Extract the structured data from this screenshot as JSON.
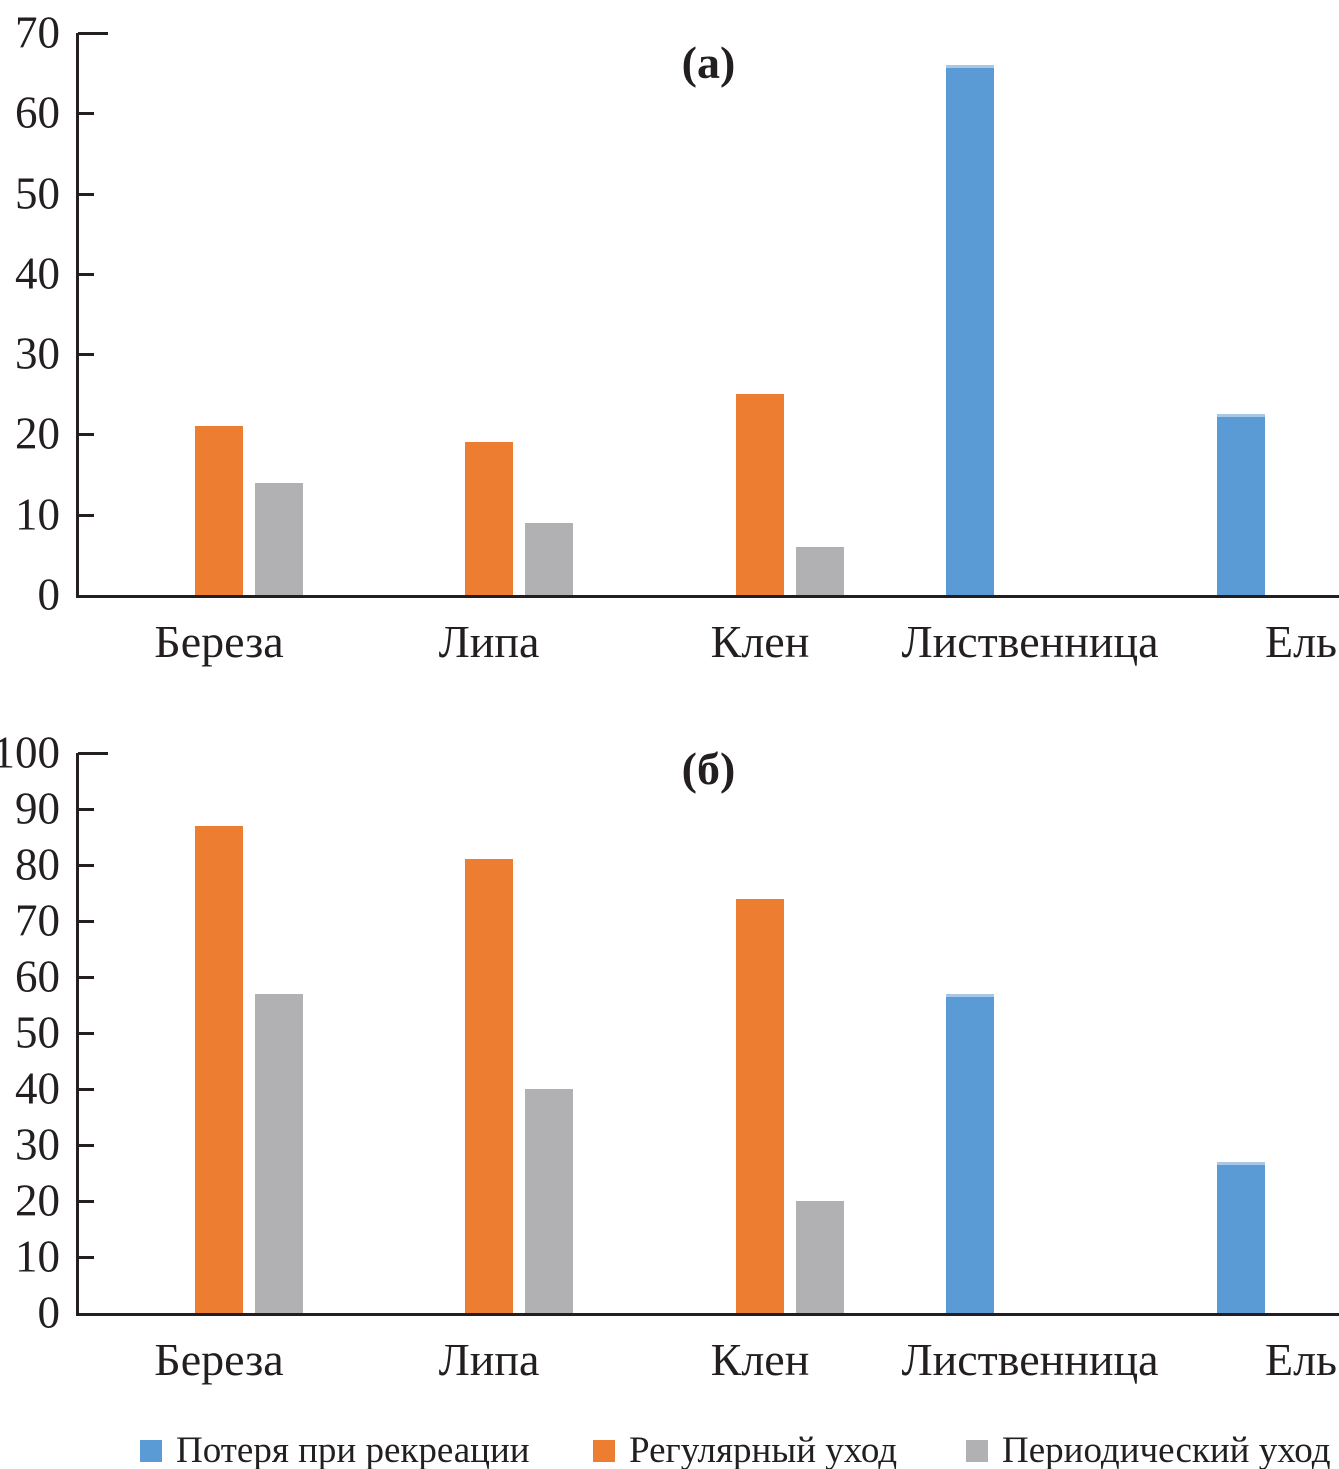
{
  "figure": {
    "background": "#ffffff",
    "text_color": "#231f20"
  },
  "legend": {
    "position": "bottom",
    "items": [
      {
        "label": "Потеря при рекреации",
        "color": "#5b9bd5"
      },
      {
        "label": "Регулярный уход",
        "color": "#ed7d31"
      },
      {
        "label": "Периодический уход",
        "color": "#b1b1b3"
      }
    ]
  },
  "chart_data": [
    {
      "type": "bar",
      "title": "(а)",
      "xlabel": "",
      "ylabel": "",
      "ylim": [
        0,
        70
      ],
      "ytick_step": 10,
      "yticks": [
        0,
        10,
        20,
        30,
        40,
        50,
        60,
        70
      ],
      "grid": false,
      "legend_position": "none",
      "categories": [
        "Береза",
        "Липа",
        "Клен",
        "Лиственница",
        "Ель"
      ],
      "series": [
        {
          "name": "Потеря при рекреации",
          "color": "#5b9bd5",
          "values": [
            null,
            null,
            null,
            66,
            22.5
          ]
        },
        {
          "name": "Регулярный уход",
          "color": "#ed7d31",
          "values": [
            21,
            19,
            25,
            null,
            null
          ]
        },
        {
          "name": "Периодический уход",
          "color": "#b1b1b3",
          "values": [
            14,
            9,
            6,
            null,
            null
          ]
        }
      ]
    },
    {
      "type": "bar",
      "title": "(б)",
      "xlabel": "",
      "ylabel": "",
      "ylim": [
        0,
        100
      ],
      "ytick_step": 10,
      "yticks": [
        0,
        10,
        20,
        30,
        40,
        50,
        60,
        70,
        80,
        90,
        100
      ],
      "grid": false,
      "legend_position": "none",
      "categories": [
        "Береза",
        "Липа",
        "Клен",
        "Лиственница",
        "Ель"
      ],
      "series": [
        {
          "name": "Потеря при рекреации",
          "color": "#5b9bd5",
          "values": [
            null,
            null,
            null,
            57,
            27
          ]
        },
        {
          "name": "Регулярный уход",
          "color": "#ed7d31",
          "values": [
            87,
            81,
            74,
            null,
            null
          ]
        },
        {
          "name": "Периодический уход",
          "color": "#b1b1b3",
          "values": [
            57,
            40,
            20,
            null,
            null
          ]
        }
      ]
    }
  ]
}
